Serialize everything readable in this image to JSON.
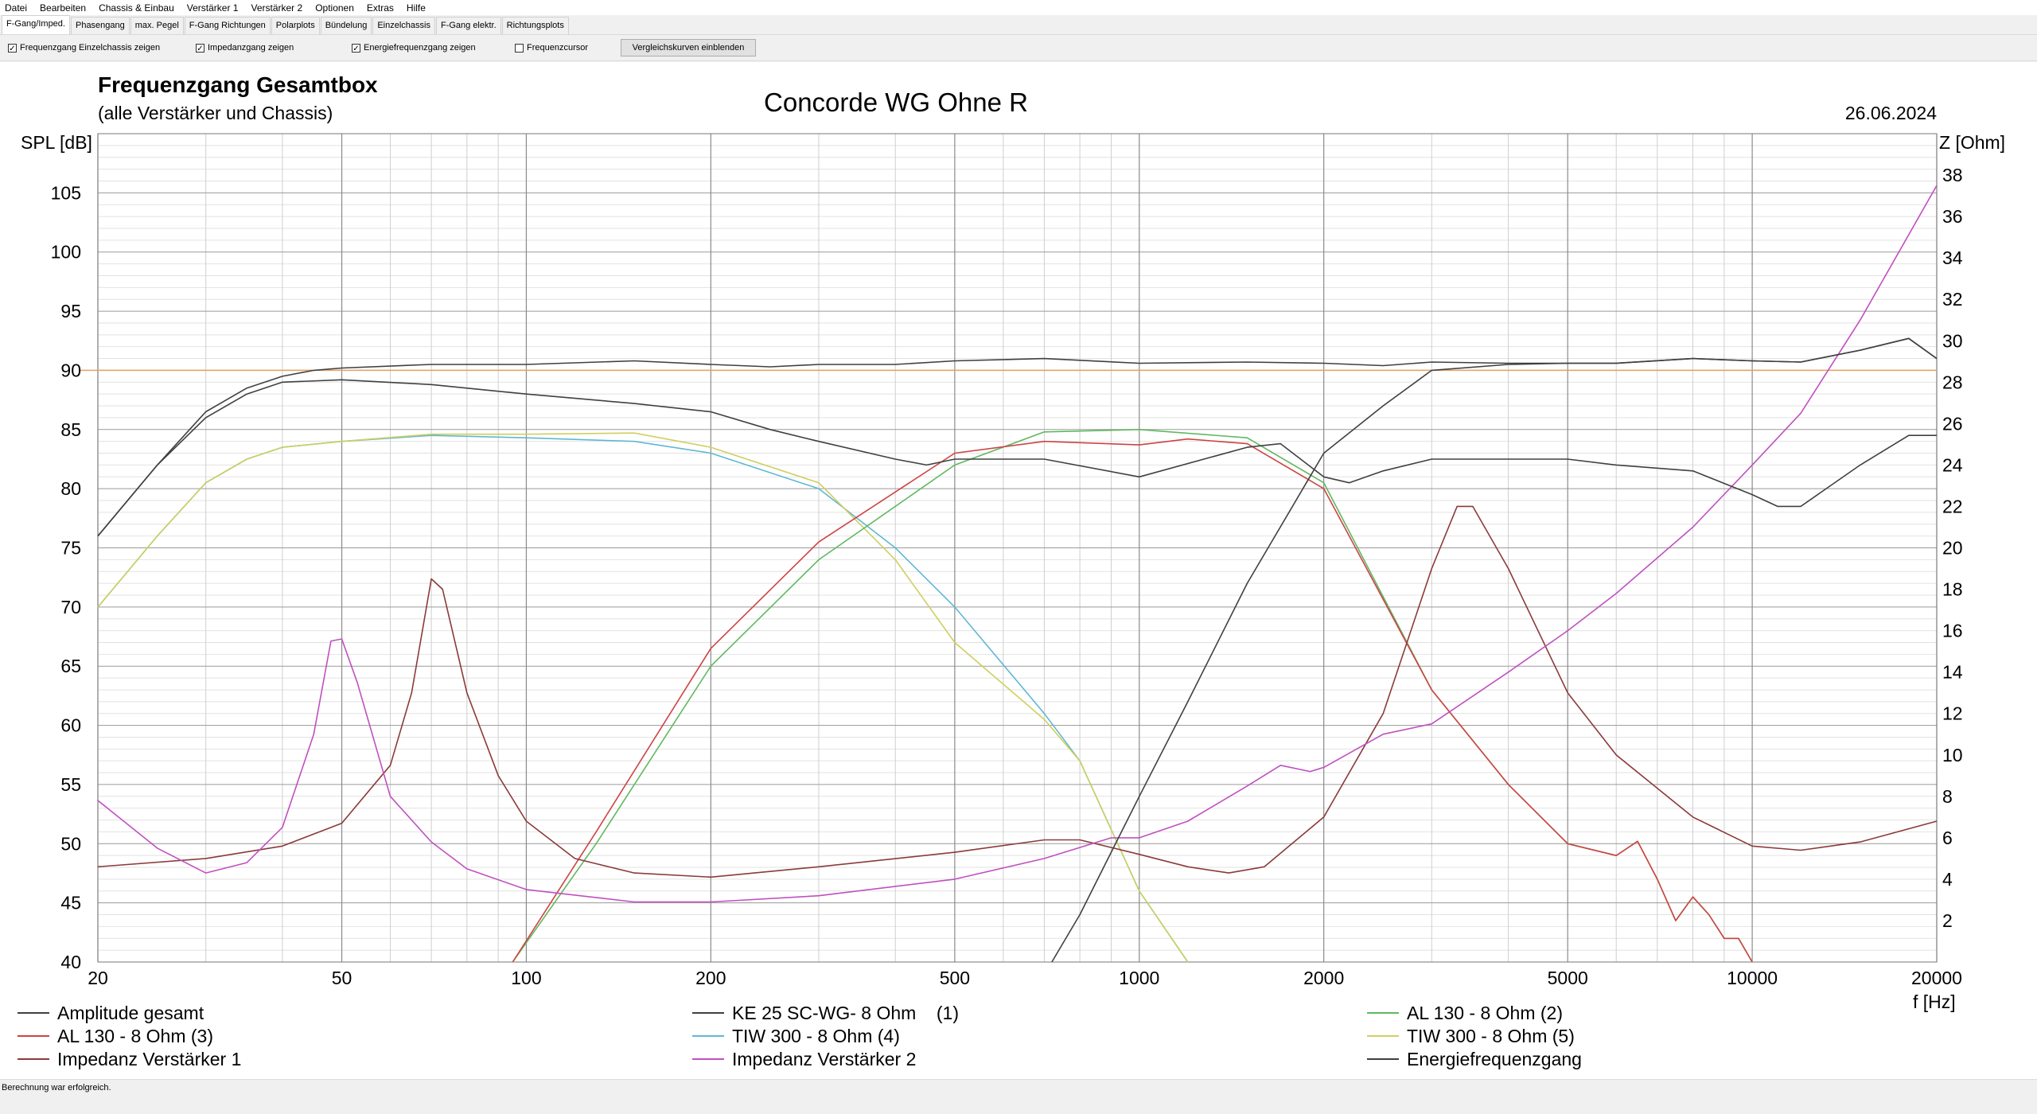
{
  "menu": [
    "Datei",
    "Bearbeiten",
    "Chassis & Einbau",
    "Verstärker 1",
    "Verstärker 2",
    "Optionen",
    "Extras",
    "Hilfe"
  ],
  "tabs": [
    "F-Gang/Imped.",
    "Phasengang",
    "max. Pegel",
    "F-Gang Richtungen",
    "Polarplots",
    "Bündelung",
    "Einzelchassis",
    "F-Gang elektr.",
    "Richtungsplots"
  ],
  "active_tab": 0,
  "toolbar": {
    "checkboxes": [
      {
        "label": "Frequenzgang Einzelchassis zeigen",
        "checked": true
      },
      {
        "label": "Impedanzgang zeigen",
        "checked": true
      },
      {
        "label": "Energiefrequenzgang zeigen",
        "checked": true
      },
      {
        "label": "Frequenzcursor",
        "checked": false
      }
    ],
    "button": "Vergleichskurven einblenden"
  },
  "status": "Berechnung war erfolgreich.",
  "chart_data": {
    "type": "line",
    "title": "Frequenzgang Gesamtbox",
    "subtitle": "(alle Verstärker und Chassis)",
    "center_title": "Concorde WG Ohne R",
    "date": "26.06.2024",
    "xlabel": "f [Hz]",
    "ylabel": "SPL [dB]",
    "y2label": "Z [Ohm]",
    "xscale": "log",
    "xlim": [
      20,
      20000
    ],
    "ylim": [
      40,
      110
    ],
    "y2lim": [
      0,
      40
    ],
    "xticks": [
      20,
      50,
      100,
      200,
      500,
      1000,
      2000,
      5000,
      10000,
      20000
    ],
    "yticks": [
      40,
      45,
      50,
      55,
      60,
      65,
      70,
      75,
      80,
      85,
      90,
      95,
      100,
      105
    ],
    "y2ticks": [
      2,
      4,
      6,
      8,
      10,
      12,
      14,
      16,
      18,
      20,
      22,
      24,
      26,
      28,
      30,
      32,
      34,
      36,
      38
    ],
    "reference_level": 90,
    "grid": true,
    "legend_placement": "bottom",
    "series": [
      {
        "name": "Amplitude gesamt",
        "color": "#404040",
        "axis": "left",
        "points": [
          [
            20,
            76
          ],
          [
            25,
            82
          ],
          [
            30,
            86.5
          ],
          [
            35,
            88.5
          ],
          [
            40,
            89.5
          ],
          [
            45,
            90
          ],
          [
            50,
            90.2
          ],
          [
            70,
            90.5
          ],
          [
            100,
            90.5
          ],
          [
            150,
            90.8
          ],
          [
            200,
            90.5
          ],
          [
            250,
            90.3
          ],
          [
            300,
            90.5
          ],
          [
            400,
            90.5
          ],
          [
            500,
            90.8
          ],
          [
            700,
            91
          ],
          [
            1000,
            90.6
          ],
          [
            1500,
            90.7
          ],
          [
            2000,
            90.6
          ],
          [
            2500,
            90.4
          ],
          [
            3000,
            90.7
          ],
          [
            4000,
            90.6
          ],
          [
            5000,
            90.6
          ],
          [
            6000,
            90.6
          ],
          [
            8000,
            91
          ],
          [
            10000,
            90.8
          ],
          [
            12000,
            90.7
          ],
          [
            15000,
            91.7
          ],
          [
            18000,
            92.7
          ],
          [
            20000,
            91
          ]
        ]
      },
      {
        "name": "KE 25 SC-WG- 8 Ohm    (1)",
        "color": "#404040",
        "axis": "left",
        "points": [
          [
            720,
            40
          ],
          [
            800,
            44
          ],
          [
            1000,
            54
          ],
          [
            1200,
            62
          ],
          [
            1500,
            72
          ],
          [
            2000,
            83
          ],
          [
            2500,
            87
          ],
          [
            3000,
            90
          ],
          [
            4000,
            90.5
          ],
          [
            5000,
            90.6
          ],
          [
            6000,
            90.6
          ],
          [
            8000,
            91
          ],
          [
            10000,
            90.8
          ],
          [
            12000,
            90.7
          ],
          [
            15000,
            91.7
          ],
          [
            18000,
            92.7
          ],
          [
            20000,
            91
          ]
        ]
      },
      {
        "name": "AL 130 - 8 Ohm (2)",
        "color": "#60b860",
        "axis": "left",
        "points": [
          [
            95,
            40
          ],
          [
            130,
            50
          ],
          [
            200,
            65
          ],
          [
            300,
            74
          ],
          [
            500,
            82
          ],
          [
            700,
            84.8
          ],
          [
            1000,
            85
          ],
          [
            1500,
            84.3
          ],
          [
            2000,
            80.5
          ],
          [
            3000,
            63
          ],
          [
            4000,
            55
          ],
          [
            5000,
            50
          ],
          [
            6000,
            49
          ],
          [
            6500,
            50.2
          ],
          [
            7000,
            47
          ],
          [
            7500,
            43.5
          ],
          [
            8000,
            45.5
          ],
          [
            8500,
            44
          ],
          [
            9000,
            42
          ],
          [
            9500,
            42
          ],
          [
            10000,
            40
          ]
        ]
      },
      {
        "name": "AL 130 - 8 Ohm (3)",
        "color": "#cc4444",
        "axis": "left",
        "points": [
          [
            95,
            40
          ],
          [
            130,
            51
          ],
          [
            200,
            66.5
          ],
          [
            300,
            75.5
          ],
          [
            500,
            83
          ],
          [
            700,
            84
          ],
          [
            1000,
            83.7
          ],
          [
            1200,
            84.2
          ],
          [
            1500,
            83.8
          ],
          [
            2000,
            80
          ],
          [
            3000,
            63
          ],
          [
            4000,
            55
          ],
          [
            5000,
            50
          ],
          [
            6000,
            49
          ],
          [
            6500,
            50.2
          ],
          [
            7000,
            47
          ],
          [
            7500,
            43.5
          ],
          [
            8000,
            45.5
          ],
          [
            8500,
            44
          ],
          [
            9000,
            42
          ],
          [
            9500,
            42
          ],
          [
            10000,
            40
          ]
        ]
      },
      {
        "name": "TIW 300 - 8 Ohm (4)",
        "color": "#5fb8d4",
        "axis": "left",
        "points": [
          [
            20,
            70
          ],
          [
            25,
            76
          ],
          [
            30,
            80.5
          ],
          [
            35,
            82.5
          ],
          [
            40,
            83.5
          ],
          [
            50,
            84
          ],
          [
            70,
            84.5
          ],
          [
            100,
            84.3
          ],
          [
            150,
            84
          ],
          [
            200,
            83
          ],
          [
            300,
            80
          ],
          [
            400,
            75
          ],
          [
            500,
            70
          ],
          [
            700,
            61
          ],
          [
            800,
            57
          ],
          [
            1000,
            46
          ],
          [
            1200,
            40
          ]
        ]
      },
      {
        "name": "TIW 300 - 8 Ohm (5)",
        "color": "#cfcf60",
        "axis": "left",
        "points": [
          [
            20,
            70
          ],
          [
            25,
            76
          ],
          [
            30,
            80.5
          ],
          [
            35,
            82.5
          ],
          [
            40,
            83.5
          ],
          [
            50,
            84
          ],
          [
            70,
            84.6
          ],
          [
            100,
            84.6
          ],
          [
            150,
            84.7
          ],
          [
            200,
            83.5
          ],
          [
            300,
            80.5
          ],
          [
            400,
            74
          ],
          [
            500,
            67
          ],
          [
            700,
            60.5
          ],
          [
            800,
            57
          ],
          [
            1000,
            46
          ],
          [
            1200,
            40
          ]
        ]
      },
      {
        "name": "Impedanz Verstärker 1",
        "color": "#8b3a3a",
        "axis": "right",
        "points": [
          [
            20,
            4.6
          ],
          [
            30,
            5
          ],
          [
            40,
            5.6
          ],
          [
            50,
            6.7
          ],
          [
            60,
            9.5
          ],
          [
            65,
            13
          ],
          [
            70,
            18.5
          ],
          [
            73,
            18
          ],
          [
            80,
            13
          ],
          [
            90,
            9
          ],
          [
            100,
            6.8
          ],
          [
            120,
            5
          ],
          [
            150,
            4.3
          ],
          [
            200,
            4.1
          ],
          [
            300,
            4.6
          ],
          [
            500,
            5.3
          ],
          [
            700,
            5.9
          ],
          [
            800,
            5.9
          ],
          [
            1000,
            5.2
          ],
          [
            1200,
            4.6
          ],
          [
            1400,
            4.3
          ],
          [
            1600,
            4.6
          ],
          [
            2000,
            7
          ],
          [
            2500,
            12
          ],
          [
            3000,
            19
          ],
          [
            3300,
            22
          ],
          [
            3500,
            22
          ],
          [
            4000,
            19
          ],
          [
            5000,
            13
          ],
          [
            6000,
            10
          ],
          [
            8000,
            7
          ],
          [
            10000,
            5.6
          ],
          [
            12000,
            5.4
          ],
          [
            15000,
            5.8
          ],
          [
            20000,
            6.8
          ]
        ]
      },
      {
        "name": "Impedanz Verstärker 2",
        "color": "#c050c0",
        "axis": "right",
        "points": [
          [
            20,
            7.8
          ],
          [
            25,
            5.5
          ],
          [
            30,
            4.3
          ],
          [
            35,
            4.8
          ],
          [
            40,
            6.5
          ],
          [
            45,
            11
          ],
          [
            48,
            15.5
          ],
          [
            50,
            15.6
          ],
          [
            53,
            13.5
          ],
          [
            60,
            8
          ],
          [
            70,
            5.8
          ],
          [
            80,
            4.5
          ],
          [
            100,
            3.5
          ],
          [
            150,
            2.9
          ],
          [
            200,
            2.9
          ],
          [
            300,
            3.2
          ],
          [
            500,
            4
          ],
          [
            700,
            5
          ],
          [
            900,
            6
          ],
          [
            1000,
            6
          ],
          [
            1200,
            6.8
          ],
          [
            1500,
            8.5
          ],
          [
            1700,
            9.5
          ],
          [
            1900,
            9.2
          ],
          [
            2000,
            9.4
          ],
          [
            2500,
            11
          ],
          [
            3000,
            11.5
          ],
          [
            4000,
            14
          ],
          [
            5000,
            16
          ],
          [
            6000,
            17.8
          ],
          [
            8000,
            21
          ],
          [
            10000,
            24
          ],
          [
            12000,
            26.5
          ],
          [
            15000,
            31
          ],
          [
            20000,
            37.5
          ]
        ]
      },
      {
        "name": "Energiefrequenzgang",
        "color": "#404040",
        "axis": "left",
        "points": [
          [
            20,
            76
          ],
          [
            25,
            82
          ],
          [
            30,
            86
          ],
          [
            35,
            88
          ],
          [
            40,
            89
          ],
          [
            50,
            89.2
          ],
          [
            70,
            88.8
          ],
          [
            100,
            88
          ],
          [
            150,
            87.2
          ],
          [
            200,
            86.5
          ],
          [
            250,
            85
          ],
          [
            300,
            84
          ],
          [
            400,
            82.5
          ],
          [
            450,
            82
          ],
          [
            500,
            82.5
          ],
          [
            700,
            82.5
          ],
          [
            1000,
            81
          ],
          [
            1500,
            83.5
          ],
          [
            1700,
            83.8
          ],
          [
            2000,
            81
          ],
          [
            2200,
            80.5
          ],
          [
            2500,
            81.5
          ],
          [
            3000,
            82.5
          ],
          [
            4000,
            82.5
          ],
          [
            5000,
            82.5
          ],
          [
            6000,
            82
          ],
          [
            8000,
            81.5
          ],
          [
            10000,
            79.5
          ],
          [
            11000,
            78.5
          ],
          [
            12000,
            78.5
          ],
          [
            15000,
            82
          ],
          [
            18000,
            84.5
          ],
          [
            20000,
            84.5
          ]
        ]
      }
    ]
  }
}
